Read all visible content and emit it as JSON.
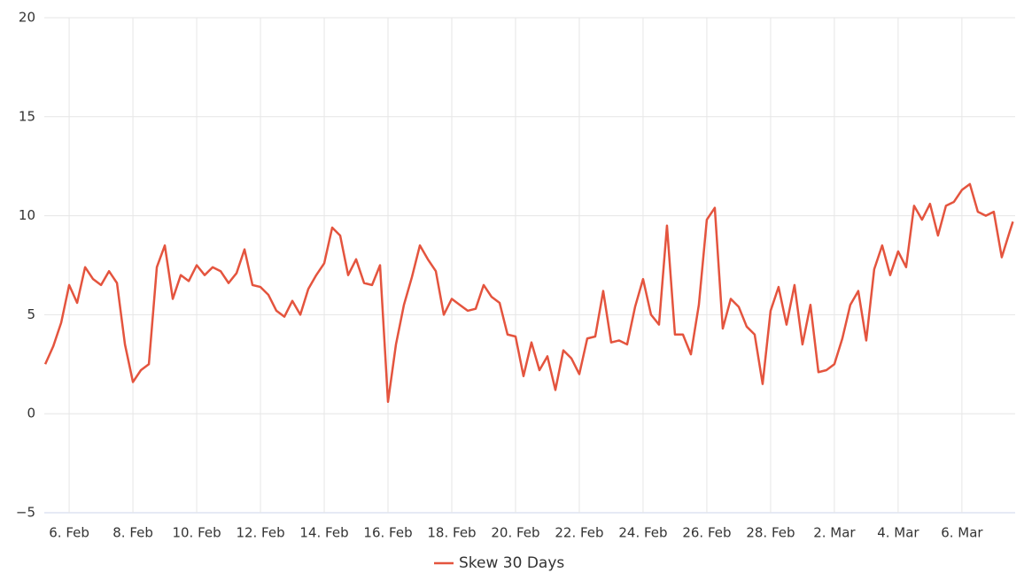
{
  "chart_data": {
    "type": "line",
    "x": [
      5.25,
      5.5,
      5.75,
      6,
      6.25,
      6.5,
      6.75,
      7,
      7.25,
      7.5,
      7.75,
      8,
      8.25,
      8.5,
      8.75,
      9,
      9.25,
      9.5,
      9.75,
      10,
      10.25,
      10.5,
      10.75,
      11,
      11.25,
      11.5,
      11.75,
      12,
      12.25,
      12.5,
      12.75,
      13,
      13.25,
      13.5,
      13.75,
      14,
      14.25,
      14.5,
      14.75,
      15,
      15.25,
      15.5,
      15.75,
      16,
      16.25,
      16.5,
      16.75,
      17,
      17.25,
      17.5,
      17.75,
      18,
      18.25,
      18.5,
      18.75,
      19,
      19.25,
      19.5,
      19.75,
      20,
      20.25,
      20.5,
      20.75,
      21,
      21.25,
      21.5,
      21.75,
      22,
      22.25,
      22.5,
      22.75,
      23,
      23.25,
      23.5,
      23.75,
      24,
      24.25,
      24.5,
      24.75,
      25,
      25.25,
      25.5,
      25.75,
      26,
      26.25,
      26.5,
      26.75,
      27,
      27.25,
      27.5,
      27.75,
      28,
      28.25,
      28.5,
      28.75,
      29,
      29.25,
      29.5,
      29.75,
      30,
      30.25,
      30.5,
      30.75,
      31,
      31.25,
      31.5,
      31.75,
      32,
      32.25,
      32.5,
      32.75,
      33,
      33.25,
      33.5,
      33.75,
      34,
      34.25,
      34.5,
      34.75,
      35,
      35.25,
      35.5,
      35.6
    ],
    "series": [
      {
        "name": "Skew 30 Days",
        "color": "#e4543e",
        "values": [
          2.5,
          3.4,
          4.6,
          6.5,
          5.6,
          7.4,
          6.8,
          6.5,
          7.2,
          6.6,
          3.5,
          1.6,
          2.2,
          2.5,
          7.4,
          8.5,
          5.8,
          7.0,
          6.7,
          7.5,
          7.0,
          7.4,
          7.2,
          6.6,
          7.1,
          8.3,
          6.5,
          6.4,
          6.0,
          5.2,
          4.9,
          5.7,
          5.0,
          6.3,
          7.0,
          7.6,
          9.4,
          9.0,
          7.0,
          7.8,
          6.6,
          6.5,
          7.5,
          0.6,
          3.5,
          5.5,
          6.9,
          8.5,
          7.8,
          7.2,
          5.0,
          5.8,
          5.5,
          5.2,
          5.3,
          6.5,
          5.9,
          5.6,
          4.0,
          3.9,
          1.9,
          3.6,
          2.2,
          2.9,
          1.2,
          3.2,
          2.8,
          2.0,
          3.8,
          3.9,
          6.2,
          3.6,
          3.7,
          3.5,
          5.4,
          6.8,
          5.0,
          4.5,
          9.5,
          4.0,
          4.0,
          3.0,
          5.5,
          9.8,
          10.4,
          4.3,
          5.8,
          5.4,
          4.4,
          4.0,
          1.5,
          5.2,
          6.4,
          4.5,
          6.5,
          3.5,
          5.5,
          2.1,
          2.2,
          2.5,
          3.8,
          5.5,
          6.2,
          3.7,
          7.3,
          8.5,
          7.0,
          8.2,
          7.4,
          10.5,
          9.8,
          10.6,
          9.0,
          10.5,
          10.7,
          11.3,
          11.6,
          10.2,
          10.0,
          10.2,
          7.9,
          9.2,
          9.7
        ]
      }
    ],
    "xlim": [
      5.22,
      35.67
    ],
    "xticks": [
      {
        "value": 6,
        "label": "6. Feb"
      },
      {
        "value": 8,
        "label": "8. Feb"
      },
      {
        "value": 10,
        "label": "10. Feb"
      },
      {
        "value": 12,
        "label": "12. Feb"
      },
      {
        "value": 14,
        "label": "14. Feb"
      },
      {
        "value": 16,
        "label": "16. Feb"
      },
      {
        "value": 18,
        "label": "18. Feb"
      },
      {
        "value": 20,
        "label": "20. Feb"
      },
      {
        "value": 22,
        "label": "22. Feb"
      },
      {
        "value": 24,
        "label": "24. Feb"
      },
      {
        "value": 26,
        "label": "26. Feb"
      },
      {
        "value": 28,
        "label": "28. Feb"
      },
      {
        "value": 30,
        "label": "2. Mar"
      },
      {
        "value": 32,
        "label": "4. Mar"
      },
      {
        "value": 34,
        "label": "6. Mar"
      }
    ],
    "ylim": [
      -5,
      20
    ],
    "yticks": [
      {
        "value": -5,
        "label": "−5"
      },
      0,
      5,
      10,
      15,
      20
    ],
    "grid": true
  }
}
